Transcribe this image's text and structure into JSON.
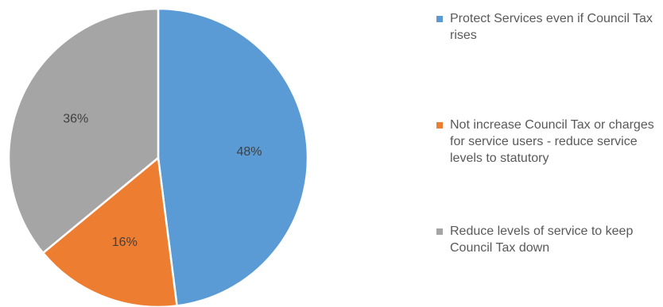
{
  "chart_data": {
    "type": "pie",
    "slices": [
      {
        "label": "Protect Services even if Council Tax rises",
        "value": 48,
        "value_label": "48%",
        "color": "#5b9bd5"
      },
      {
        "label": "Not increase Council Tax or charges for service users - reduce service levels to statutory",
        "value": 16,
        "value_label": "16%",
        "color": "#ed7d31"
      },
      {
        "label": "Reduce levels of service to keep Council Tax down",
        "value": 36,
        "value_label": "36%",
        "color": "#a5a5a5"
      }
    ],
    "legend_position": "right",
    "start_angle": "top, clockwise"
  }
}
